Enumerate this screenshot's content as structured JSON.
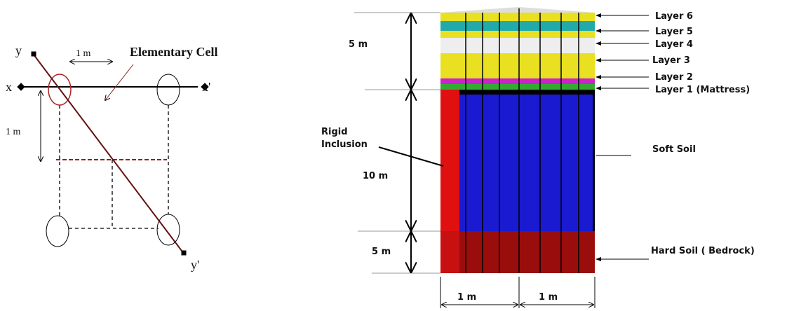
{
  "left": {
    "y_label": "y",
    "spacing_top": "1 m",
    "cell_label": "Elementary Cell",
    "x_label": "x",
    "x_prime_label": "x'",
    "spacing_left": "1 m",
    "y_prime_label": "y'"
  },
  "right": {
    "depths": [
      "5 m",
      "10 m",
      "5 m"
    ],
    "inclusion": [
      "Rigid",
      "Inclusion"
    ],
    "widths": [
      "1 m",
      "1 m"
    ],
    "layers": [
      "Layer 6",
      "Layer 5",
      "Layer 4",
      "Layer 3",
      "Layer 2",
      "Layer 1 (Mattress)"
    ],
    "soft_soil": "Soft Soil",
    "hard_soil": "Hard Soil ( Bedrock)"
  }
}
